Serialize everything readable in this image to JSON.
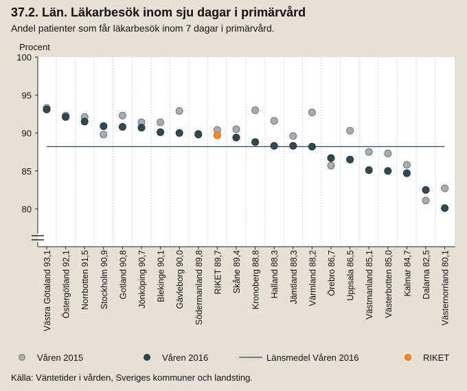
{
  "title": "37.2. Län. Läkarbesök inom sju dagar i primärvård",
  "subtitle": "Andel patienter som får läkarbesök inom 7 dagar i primärvård.",
  "source": "Källa: Väntetider i vården, Sveriges kommuner och landsting.",
  "colors": {
    "background": "#e6e1d2",
    "plot_background": "#ffffff",
    "v2015": "#a8adb0",
    "v2016": "#2e4a52",
    "riket": "#f08a2a",
    "mean_line": "#2e4a52"
  },
  "chart_data": {
    "type": "scatter",
    "ylabel": "Procent",
    "ylim": [
      75,
      100
    ],
    "yticks": [
      80,
      85,
      90,
      95,
      100
    ],
    "axis_break": true,
    "categories": [
      "Västra Götaland 93,1",
      "Östergötland 92,1",
      "Norrbotten 91,5",
      "Stockholm 90,9",
      "Gotland 90,8",
      "Jönköping 90,7",
      "Blekinge 90,1",
      "Gävleborg 90,0",
      "Södermanland 89,8",
      "RIKET 89,7",
      "Skåne 89,4",
      "Kronoberg 88,8",
      "Halland 88,3",
      "Jämtland 88,3",
      "Värmland 88,2",
      "Örebro 86,7",
      "Uppsala 86,5",
      "Västmanland 85,1",
      "Västerbotten 85,0",
      "Kalmar 84,7",
      "Dalarna 82,5",
      "Västernorrland 80,1"
    ],
    "riket_index": 9,
    "series": [
      {
        "name": "Våren 2015",
        "values": [
          93.3,
          92.3,
          92.1,
          89.8,
          92.3,
          91.4,
          91.4,
          92.9,
          89.9,
          90.4,
          90.5,
          93.0,
          91.6,
          89.6,
          92.7,
          85.7,
          90.3,
          87.5,
          87.3,
          85.8,
          81.1,
          82.7
        ]
      },
      {
        "name": "Våren 2016",
        "values": [
          93.1,
          92.1,
          91.5,
          90.9,
          90.8,
          90.7,
          90.1,
          90.0,
          89.8,
          89.7,
          89.4,
          88.8,
          88.3,
          88.3,
          88.2,
          86.7,
          86.5,
          85.1,
          85.0,
          84.7,
          82.5,
          80.1
        ]
      }
    ],
    "mean_line": {
      "name": "Länsmedel Våren 2016",
      "value": 88.2
    },
    "legend": [
      {
        "key": "v2015",
        "label": "Våren 2015"
      },
      {
        "key": "v2016",
        "label": "Våren 2016"
      },
      {
        "key": "mean",
        "label": "Länsmedel Våren 2016"
      },
      {
        "key": "riket",
        "label": "RIKET"
      }
    ]
  }
}
